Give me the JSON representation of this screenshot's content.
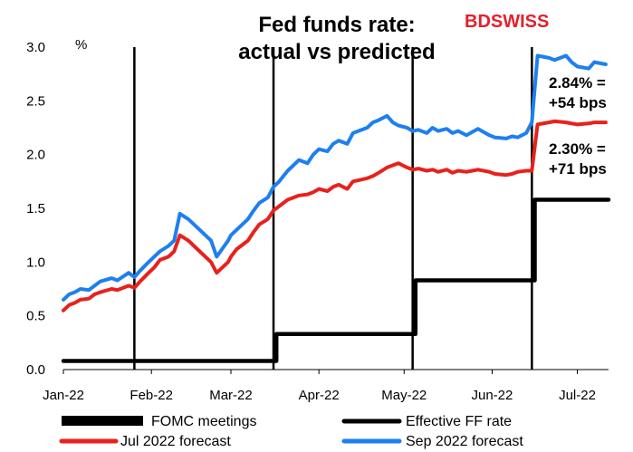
{
  "chart_data": {
    "type": "line",
    "title_lines": [
      "Fed funds rate:",
      "actual vs predicted"
    ],
    "ylabel": "%",
    "ylim": [
      0,
      3.0
    ],
    "yticks": [
      "0.0",
      "0.5",
      "1.0",
      "1.5",
      "2.0",
      "2.5",
      "3.0"
    ],
    "xlim": [
      "2022-01-01",
      "2022-07-12"
    ],
    "xticks": [
      {
        "date": "2022-01-01",
        "label": "Jan-22"
      },
      {
        "date": "2022-02-01",
        "label": "Feb-22"
      },
      {
        "date": "2022-03-01",
        "label": "Mar-22"
      },
      {
        "date": "2022-04-01",
        "label": "Apr-22"
      },
      {
        "date": "2022-05-01",
        "label": "May-22"
      },
      {
        "date": "2022-06-01",
        "label": "Jun-22"
      },
      {
        "date": "2022-07-01",
        "label": "Jul-22"
      }
    ],
    "grid": false,
    "legend_position": "bottom",
    "logo": {
      "part1": "BD",
      "part2": "SWISS"
    },
    "annotations": [
      {
        "lines": [
          "2.84% =",
          "+54 bps"
        ],
        "x": "2022-06-16",
        "y": 2.84
      },
      {
        "lines": [
          "2.30% =",
          "+71 bps"
        ],
        "x": "2022-06-16",
        "y": 2.3
      }
    ],
    "fomc_meetings": {
      "name": "FOMC meetings",
      "color": "#000000",
      "dates": [
        "2022-01-26",
        "2022-03-16",
        "2022-05-04",
        "2022-06-15"
      ]
    },
    "series": [
      {
        "name": "Effective FF rate",
        "color": "#000000",
        "step": true,
        "x": [
          "2022-01-01",
          "2022-03-17",
          "2022-05-05",
          "2022-06-16",
          "2022-07-12"
        ],
        "y": [
          0.08,
          0.33,
          0.83,
          1.58,
          1.58
        ]
      },
      {
        "name": "Jul 2022 forecast",
        "color": "#e8211d",
        "x": [
          "2022-01-01",
          "2022-01-03",
          "2022-01-05",
          "2022-01-07",
          "2022-01-10",
          "2022-01-12",
          "2022-01-14",
          "2022-01-18",
          "2022-01-20",
          "2022-01-24",
          "2022-01-26",
          "2022-01-28",
          "2022-01-31",
          "2022-02-02",
          "2022-02-04",
          "2022-02-07",
          "2022-02-09",
          "2022-02-11",
          "2022-02-14",
          "2022-02-16",
          "2022-02-18",
          "2022-02-22",
          "2022-02-24",
          "2022-02-28",
          "2022-03-01",
          "2022-03-03",
          "2022-03-07",
          "2022-03-09",
          "2022-03-11",
          "2022-03-14",
          "2022-03-16",
          "2022-03-18",
          "2022-03-21",
          "2022-03-23",
          "2022-03-25",
          "2022-03-28",
          "2022-03-30",
          "2022-04-01",
          "2022-04-04",
          "2022-04-06",
          "2022-04-08",
          "2022-04-11",
          "2022-04-13",
          "2022-04-18",
          "2022-04-20",
          "2022-04-22",
          "2022-04-25",
          "2022-04-27",
          "2022-04-29",
          "2022-05-02",
          "2022-05-04",
          "2022-05-06",
          "2022-05-09",
          "2022-05-11",
          "2022-05-13",
          "2022-05-16",
          "2022-05-18",
          "2022-05-20",
          "2022-05-23",
          "2022-05-25",
          "2022-05-27",
          "2022-05-31",
          "2022-06-02",
          "2022-06-06",
          "2022-06-08",
          "2022-06-10",
          "2022-06-13",
          "2022-06-15",
          "2022-06-17",
          "2022-06-21",
          "2022-06-23",
          "2022-06-27",
          "2022-06-29",
          "2022-07-01",
          "2022-07-05",
          "2022-07-07",
          "2022-07-11"
        ],
        "y": [
          0.55,
          0.6,
          0.62,
          0.65,
          0.66,
          0.7,
          0.72,
          0.75,
          0.74,
          0.78,
          0.76,
          0.82,
          0.9,
          0.95,
          1.02,
          1.05,
          1.1,
          1.25,
          1.2,
          1.15,
          1.1,
          1.0,
          0.9,
          1.0,
          1.05,
          1.12,
          1.2,
          1.28,
          1.35,
          1.4,
          1.48,
          1.52,
          1.58,
          1.6,
          1.62,
          1.63,
          1.65,
          1.68,
          1.66,
          1.7,
          1.72,
          1.68,
          1.75,
          1.78,
          1.8,
          1.83,
          1.88,
          1.9,
          1.92,
          1.88,
          1.86,
          1.87,
          1.85,
          1.86,
          1.84,
          1.86,
          1.83,
          1.85,
          1.84,
          1.85,
          1.86,
          1.84,
          1.82,
          1.81,
          1.82,
          1.84,
          1.85,
          1.85,
          2.28,
          2.3,
          2.31,
          2.3,
          2.29,
          2.28,
          2.29,
          2.3,
          2.3
        ]
      },
      {
        "name": "Sep 2022 forecast",
        "color": "#1e7ff0",
        "x": [
          "2022-01-01",
          "2022-01-03",
          "2022-01-05",
          "2022-01-07",
          "2022-01-10",
          "2022-01-12",
          "2022-01-14",
          "2022-01-18",
          "2022-01-20",
          "2022-01-24",
          "2022-01-26",
          "2022-01-28",
          "2022-01-31",
          "2022-02-02",
          "2022-02-04",
          "2022-02-07",
          "2022-02-09",
          "2022-02-11",
          "2022-02-14",
          "2022-02-16",
          "2022-02-18",
          "2022-02-22",
          "2022-02-24",
          "2022-02-28",
          "2022-03-01",
          "2022-03-03",
          "2022-03-07",
          "2022-03-09",
          "2022-03-11",
          "2022-03-14",
          "2022-03-16",
          "2022-03-18",
          "2022-03-21",
          "2022-03-23",
          "2022-03-25",
          "2022-03-28",
          "2022-03-30",
          "2022-04-01",
          "2022-04-04",
          "2022-04-06",
          "2022-04-08",
          "2022-04-11",
          "2022-04-13",
          "2022-04-18",
          "2022-04-20",
          "2022-04-22",
          "2022-04-25",
          "2022-04-27",
          "2022-04-29",
          "2022-05-02",
          "2022-05-04",
          "2022-05-06",
          "2022-05-09",
          "2022-05-11",
          "2022-05-13",
          "2022-05-16",
          "2022-05-18",
          "2022-05-20",
          "2022-05-23",
          "2022-05-25",
          "2022-05-27",
          "2022-05-31",
          "2022-06-02",
          "2022-06-06",
          "2022-06-08",
          "2022-06-10",
          "2022-06-13",
          "2022-06-15",
          "2022-06-17",
          "2022-06-21",
          "2022-06-23",
          "2022-06-27",
          "2022-06-29",
          "2022-07-01",
          "2022-07-05",
          "2022-07-07",
          "2022-07-11"
        ],
        "y": [
          0.65,
          0.7,
          0.72,
          0.75,
          0.74,
          0.78,
          0.82,
          0.85,
          0.83,
          0.9,
          0.86,
          0.92,
          1.0,
          1.05,
          1.1,
          1.15,
          1.2,
          1.45,
          1.4,
          1.35,
          1.3,
          1.2,
          1.05,
          1.2,
          1.25,
          1.3,
          1.4,
          1.48,
          1.55,
          1.6,
          1.7,
          1.75,
          1.85,
          1.9,
          1.95,
          1.92,
          2.0,
          2.05,
          2.03,
          2.1,
          2.13,
          2.1,
          2.2,
          2.25,
          2.3,
          2.32,
          2.36,
          2.3,
          2.27,
          2.25,
          2.22,
          2.23,
          2.2,
          2.25,
          2.22,
          2.24,
          2.2,
          2.22,
          2.18,
          2.21,
          2.24,
          2.18,
          2.16,
          2.15,
          2.17,
          2.16,
          2.2,
          2.3,
          2.92,
          2.9,
          2.88,
          2.92,
          2.86,
          2.82,
          2.8,
          2.86,
          2.84
        ]
      }
    ]
  }
}
